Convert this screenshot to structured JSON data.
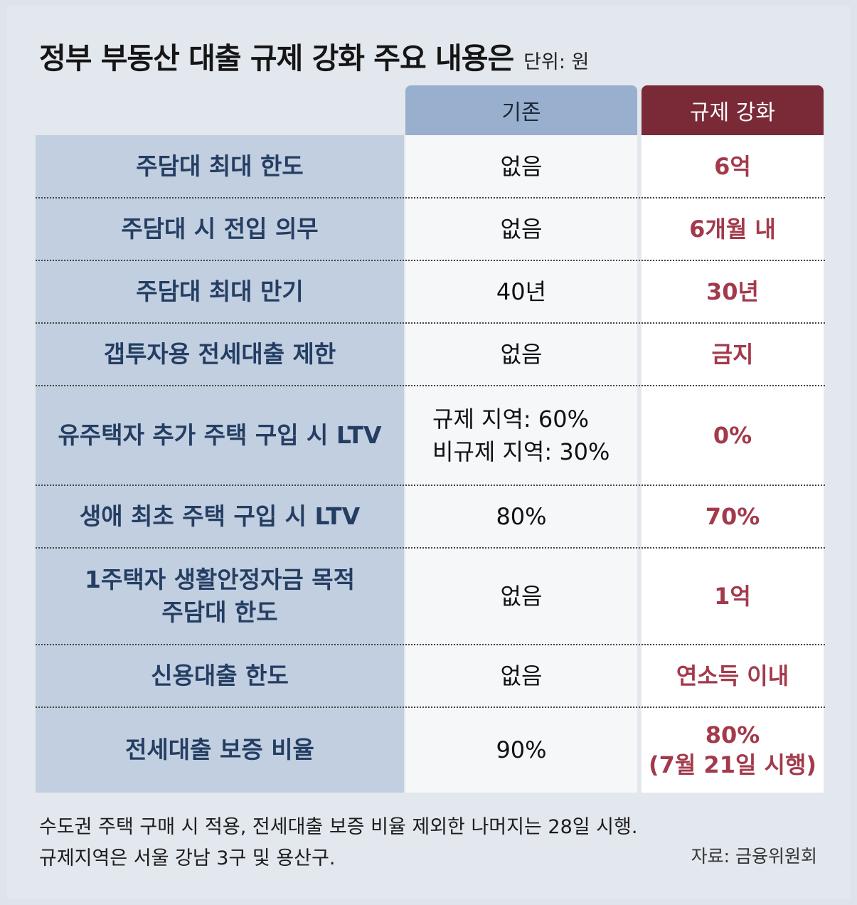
{
  "title": "정부 부동산 대출 규제 강화 주요 내용은",
  "unit": "단위: 원",
  "chart_data": {
    "type": "table",
    "columns": [
      "",
      "기존",
      "규제 강화"
    ],
    "rows": [
      {
        "label": [
          "주담대 최대 한도"
        ],
        "old": [
          "없음"
        ],
        "new": [
          "6억"
        ]
      },
      {
        "label": [
          "주담대 시 전입 의무"
        ],
        "old": [
          "없음"
        ],
        "new": [
          "6개월 내"
        ]
      },
      {
        "label": [
          "주담대 최대 만기"
        ],
        "old": [
          "40년"
        ],
        "new": [
          "30년"
        ]
      },
      {
        "label": [
          "갭투자용 전세대출 제한"
        ],
        "old": [
          "없음"
        ],
        "new": [
          "금지"
        ]
      },
      {
        "label": [
          "유주택자 추가 주택 구입 시 LTV"
        ],
        "old": [
          "규제 지역: 60%",
          "비규제 지역: 30%"
        ],
        "new": [
          "0%"
        ]
      },
      {
        "label": [
          "생애 최초 주택 구입 시 LTV"
        ],
        "old": [
          "80%"
        ],
        "new": [
          "70%"
        ]
      },
      {
        "label": [
          "1주택자 생활안정자금 목적",
          "주담대 한도"
        ],
        "old": [
          "없음"
        ],
        "new": [
          "1억"
        ]
      },
      {
        "label": [
          "신용대출 한도"
        ],
        "old": [
          "없음"
        ],
        "new": [
          "연소득 이내"
        ]
      },
      {
        "label": [
          "전세대출 보증 비율"
        ],
        "old": [
          "90%"
        ],
        "new": [
          "80%",
          "(7월 21일 시행)"
        ]
      }
    ]
  },
  "footnotes": [
    "수도권 주택 구매 시 적용, 전세대출 보증 비율 제외한 나머지는 28일 시행.",
    "규제지역은 서울 강남 3구 및 용산구."
  ],
  "source": "자료: 금융위원회",
  "colors": {
    "background": "#e3e7ee",
    "label_column": "#c2cfe0",
    "old_header": "#98afcd",
    "new_header": "#7a2a36",
    "new_text": "#a33a4c",
    "label_text": "#243e63"
  }
}
